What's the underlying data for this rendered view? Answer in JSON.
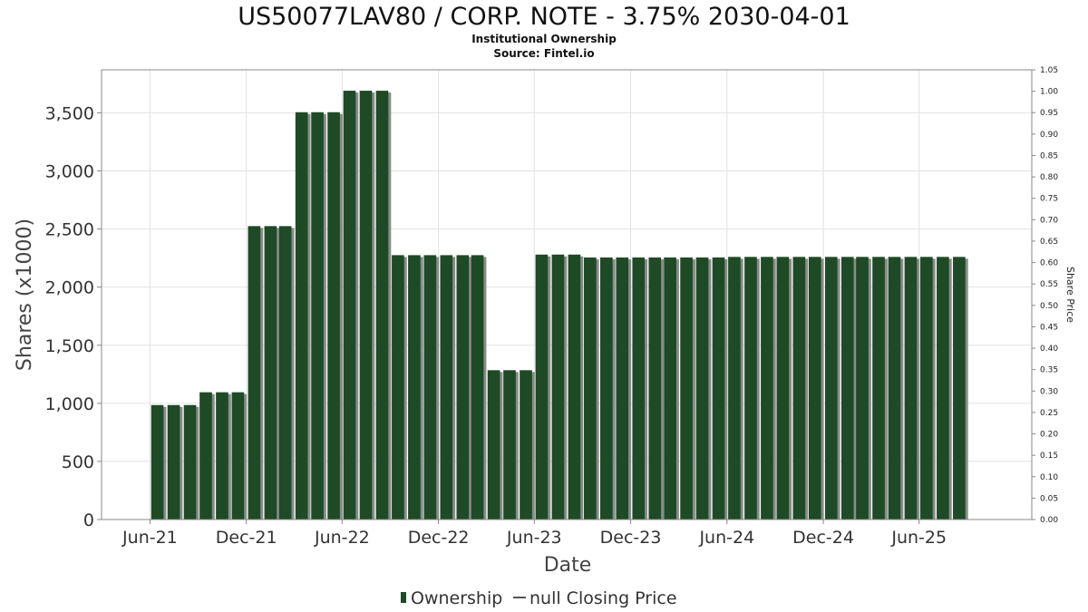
{
  "chart_data": {
    "type": "bar",
    "title": "US50077LAV80 / CORP. NOTE - 3.75% 2030-04-01",
    "subtitle_lines": [
      "Institutional Ownership",
      "Source: Fintel.io"
    ],
    "xlabel": "Date",
    "ylabel": "Shares (x1000)",
    "y2label": "Share Price",
    "ylim": [
      0,
      3870
    ],
    "y2lim": [
      0,
      1.05
    ],
    "yticks": [
      {
        "value": 0,
        "label": "0"
      },
      {
        "value": 500,
        "label": "500"
      },
      {
        "value": 1000,
        "label": "1,000"
      },
      {
        "value": 1500,
        "label": "1,500"
      },
      {
        "value": 2000,
        "label": "2,000"
      },
      {
        "value": 2500,
        "label": "2,500"
      },
      {
        "value": 3000,
        "label": "3,000"
      },
      {
        "value": 3500,
        "label": "3,500"
      }
    ],
    "y2ticks": [
      "0.00",
      "0.05",
      "0.10",
      "0.15",
      "0.20",
      "0.25",
      "0.30",
      "0.35",
      "0.40",
      "0.45",
      "0.50",
      "0.55",
      "0.60",
      "0.65",
      "0.70",
      "0.75",
      "0.80",
      "0.85",
      "0.90",
      "0.95",
      "1.00",
      "1.05"
    ],
    "x_range": [
      "2021-03-01",
      "2026-01-01"
    ],
    "xticks": [
      {
        "date": "2021-06-01",
        "label": "Jun-21"
      },
      {
        "date": "2021-12-01",
        "label": "Dec-21"
      },
      {
        "date": "2022-06-01",
        "label": "Jun-22"
      },
      {
        "date": "2022-12-01",
        "label": "Dec-22"
      },
      {
        "date": "2023-06-01",
        "label": "Jun-23"
      },
      {
        "date": "2023-12-01",
        "label": "Dec-23"
      },
      {
        "date": "2024-06-01",
        "label": "Jun-24"
      },
      {
        "date": "2024-12-01",
        "label": "Dec-24"
      },
      {
        "date": "2025-06-01",
        "label": "Jun-25"
      }
    ],
    "grid": true,
    "legend_position": "bottom",
    "series": [
      {
        "name": "Ownership",
        "color": "#1e4a26",
        "points": [
          {
            "date": "2021-06-30",
            "value": 985
          },
          {
            "date": "2021-07-31",
            "value": 985
          },
          {
            "date": "2021-08-31",
            "value": 985
          },
          {
            "date": "2021-09-30",
            "value": 1095
          },
          {
            "date": "2021-10-31",
            "value": 1095
          },
          {
            "date": "2021-11-30",
            "value": 1095
          },
          {
            "date": "2021-12-31",
            "value": 2525
          },
          {
            "date": "2022-01-31",
            "value": 2525
          },
          {
            "date": "2022-02-28",
            "value": 2525
          },
          {
            "date": "2022-03-31",
            "value": 3505
          },
          {
            "date": "2022-04-30",
            "value": 3505
          },
          {
            "date": "2022-05-31",
            "value": 3505
          },
          {
            "date": "2022-06-30",
            "value": 3690
          },
          {
            "date": "2022-07-31",
            "value": 3690
          },
          {
            "date": "2022-08-31",
            "value": 3690
          },
          {
            "date": "2022-09-30",
            "value": 2275
          },
          {
            "date": "2022-10-31",
            "value": 2275
          },
          {
            "date": "2022-11-30",
            "value": 2275
          },
          {
            "date": "2022-12-31",
            "value": 2275
          },
          {
            "date": "2023-01-31",
            "value": 2275
          },
          {
            "date": "2023-02-28",
            "value": 2275
          },
          {
            "date": "2023-03-31",
            "value": 1285
          },
          {
            "date": "2023-04-30",
            "value": 1285
          },
          {
            "date": "2023-05-31",
            "value": 1285
          },
          {
            "date": "2023-06-30",
            "value": 2280
          },
          {
            "date": "2023-07-31",
            "value": 2280
          },
          {
            "date": "2023-08-31",
            "value": 2280
          },
          {
            "date": "2023-09-30",
            "value": 2255
          },
          {
            "date": "2023-10-31",
            "value": 2255
          },
          {
            "date": "2023-11-30",
            "value": 2255
          },
          {
            "date": "2023-12-31",
            "value": 2255
          },
          {
            "date": "2024-01-31",
            "value": 2255
          },
          {
            "date": "2024-02-29",
            "value": 2255
          },
          {
            "date": "2024-03-31",
            "value": 2255
          },
          {
            "date": "2024-04-30",
            "value": 2255
          },
          {
            "date": "2024-05-31",
            "value": 2255
          },
          {
            "date": "2024-06-30",
            "value": 2260
          },
          {
            "date": "2024-07-31",
            "value": 2260
          },
          {
            "date": "2024-08-31",
            "value": 2260
          },
          {
            "date": "2024-09-30",
            "value": 2260
          },
          {
            "date": "2024-10-31",
            "value": 2260
          },
          {
            "date": "2024-11-30",
            "value": 2260
          },
          {
            "date": "2024-12-31",
            "value": 2260
          },
          {
            "date": "2025-01-31",
            "value": 2260
          },
          {
            "date": "2025-02-28",
            "value": 2260
          },
          {
            "date": "2025-03-31",
            "value": 2260
          },
          {
            "date": "2025-04-30",
            "value": 2260
          },
          {
            "date": "2025-05-31",
            "value": 2260
          },
          {
            "date": "2025-06-30",
            "value": 2260
          },
          {
            "date": "2025-07-31",
            "value": 2260
          },
          {
            "date": "2025-08-31",
            "value": 2260
          }
        ]
      },
      {
        "name": "null Closing Price",
        "color": "#555555",
        "points": []
      }
    ]
  }
}
